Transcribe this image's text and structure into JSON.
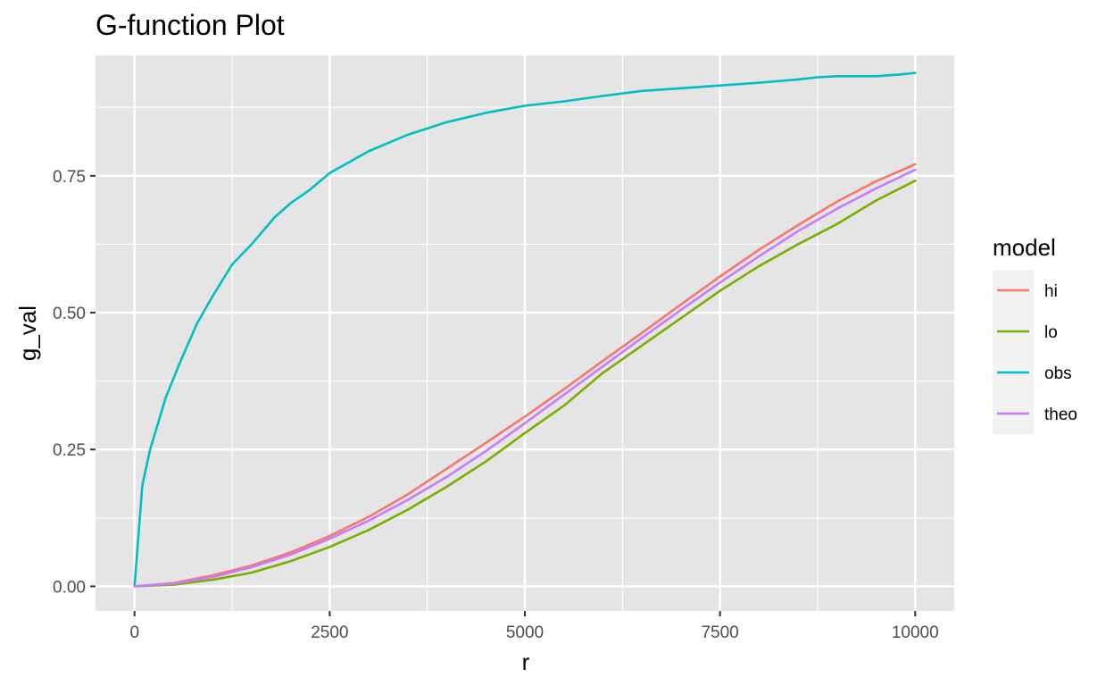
{
  "chart_data": {
    "type": "line",
    "title": "G-function Plot",
    "xlabel": "r",
    "ylabel": "g_val",
    "xlim": [
      -500,
      10500
    ],
    "ylim": [
      -0.045,
      0.97
    ],
    "x_ticks": [
      0,
      2500,
      5000,
      7500,
      10000
    ],
    "x_tick_labels": [
      "0",
      "2500",
      "5000",
      "7500",
      "10000"
    ],
    "y_ticks": [
      0,
      0.25,
      0.5,
      0.75
    ],
    "y_tick_labels": [
      "0.00",
      "0.25",
      "0.50",
      "0.75"
    ],
    "grid": true,
    "legend": {
      "title": "model",
      "position": "right"
    },
    "series": [
      {
        "name": "hi",
        "color": "#F8766D",
        "x": [
          0,
          500,
          1000,
          1500,
          2000,
          2500,
          3000,
          3500,
          4000,
          4500,
          5000,
          5500,
          6000,
          6500,
          7000,
          7500,
          8000,
          8500,
          9000,
          9500,
          10000
        ],
        "y": [
          0,
          0.006,
          0.02,
          0.038,
          0.062,
          0.092,
          0.127,
          0.168,
          0.215,
          0.262,
          0.31,
          0.36,
          0.412,
          0.463,
          0.515,
          0.566,
          0.615,
          0.66,
          0.703,
          0.74,
          0.771
        ]
      },
      {
        "name": "lo",
        "color": "#7CAE00",
        "x": [
          0,
          500,
          1000,
          1500,
          2000,
          2500,
          3000,
          3500,
          4000,
          4500,
          5000,
          5500,
          6000,
          6500,
          7000,
          7500,
          8000,
          8500,
          9000,
          9500,
          10000
        ],
        "y": [
          0,
          0.003,
          0.012,
          0.025,
          0.046,
          0.072,
          0.103,
          0.14,
          0.182,
          0.228,
          0.28,
          0.33,
          0.39,
          0.44,
          0.49,
          0.54,
          0.585,
          0.625,
          0.662,
          0.705,
          0.741
        ]
      },
      {
        "name": "obs",
        "color": "#00BFC4",
        "x": [
          0,
          100,
          200,
          400,
          600,
          800,
          1000,
          1250,
          1500,
          1800,
          2000,
          2250,
          2500,
          2750,
          3000,
          3250,
          3500,
          4000,
          4500,
          5000,
          5500,
          6000,
          6500,
          7000,
          7500,
          8000,
          8500,
          8750,
          9000,
          9500,
          9800,
          10000
        ],
        "y": [
          0,
          0.185,
          0.25,
          0.345,
          0.415,
          0.48,
          0.53,
          0.588,
          0.625,
          0.675,
          0.7,
          0.725,
          0.755,
          0.775,
          0.795,
          0.81,
          0.825,
          0.848,
          0.865,
          0.878,
          0.886,
          0.896,
          0.905,
          0.91,
          0.915,
          0.92,
          0.926,
          0.93,
          0.932,
          0.932,
          0.935,
          0.938
        ]
      },
      {
        "name": "theo",
        "color": "#C77CFF",
        "x": [
          0,
          500,
          1000,
          1500,
          2000,
          2500,
          3000,
          3500,
          4000,
          4500,
          5000,
          5500,
          6000,
          6500,
          7000,
          7500,
          8000,
          8500,
          9000,
          9500,
          10000
        ],
        "y": [
          0,
          0.005,
          0.017,
          0.035,
          0.058,
          0.087,
          0.12,
          0.158,
          0.2,
          0.247,
          0.298,
          0.35,
          0.402,
          0.454,
          0.505,
          0.555,
          0.603,
          0.649,
          0.69,
          0.727,
          0.761
        ]
      }
    ]
  }
}
